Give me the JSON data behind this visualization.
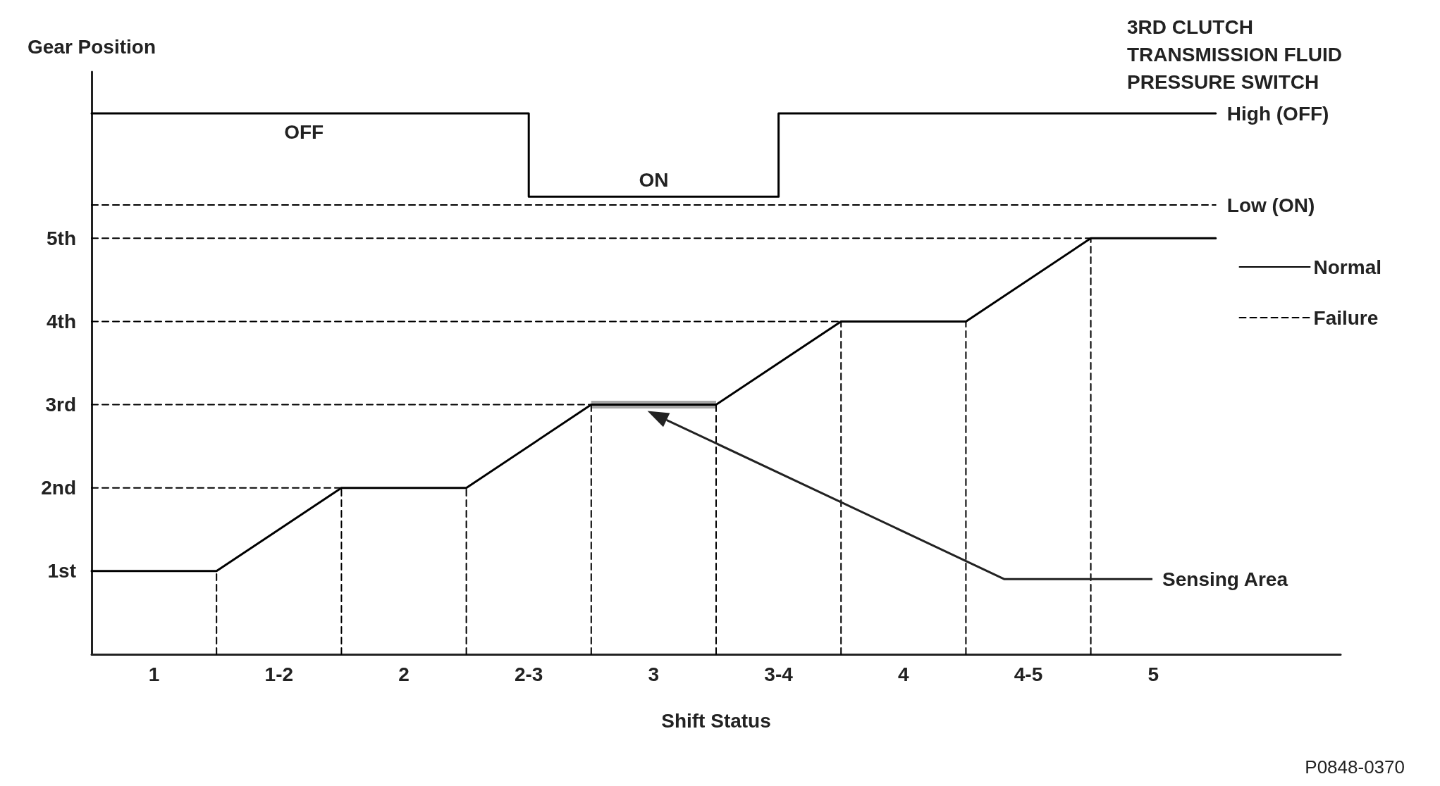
{
  "chart_data": {
    "type": "line",
    "title": "3RD CLUTCH TRANSMISSION FLUID PRESSURE SWITCH",
    "xlabel": "Shift Status",
    "ylabel": "Gear Position",
    "xlim": [
      0.75,
      5.75
    ],
    "xticks": [
      1,
      {
        "value": 1.5,
        "label": "1-2"
      },
      2,
      {
        "value": 2.5,
        "label": "2-3"
      },
      3,
      {
        "value": 3.5,
        "label": "3-4"
      },
      4,
      {
        "value": 4.5,
        "label": "4-5"
      },
      5
    ],
    "ylim": [
      0,
      7
    ],
    "yticks": [
      {
        "value": 1,
        "label": "1st"
      },
      {
        "value": 2,
        "label": "2nd"
      },
      {
        "value": 3,
        "label": "3rd"
      },
      {
        "value": 4,
        "label": "4th"
      },
      {
        "value": 5,
        "label": "5th"
      }
    ],
    "series": [
      {
        "color": "#000000",
        "line_style": "solid",
        "x": [
          0.75,
          1.25,
          1.75,
          2.25,
          2.75,
          3.25,
          3.75,
          4.25,
          4.75,
          5.25
        ],
        "values": [
          1,
          1,
          2,
          2,
          3,
          3,
          4,
          4,
          5,
          5
        ]
      },
      {
        "name": "Normal",
        "color": "#000000",
        "line_style": "solid",
        "x": [
          0.75,
          2.5,
          2.5,
          3.5,
          3.5,
          5.25
        ],
        "values": [
          6.5,
          6.5,
          5.5,
          5.5,
          6.5,
          6.5
        ]
      },
      {
        "name": "Failure",
        "color": "#000000",
        "line_style": "dashed",
        "x": [
          0.75,
          5.25
        ],
        "values": [
          5.4,
          5.4
        ]
      },
      {
        "color": "#a8a8a8",
        "line_style": "solid",
        "x": [
          2.75,
          3.25
        ],
        "values": [
          3,
          3
        ]
      },
      {
        "color": "#000000",
        "line_style": "dashed",
        "x": [
          1.25,
          1.25
        ],
        "values": [
          0,
          1
        ]
      },
      {
        "color": "#000000",
        "line_style": "dashed",
        "x": [
          1.75,
          1.75
        ],
        "values": [
          0,
          2
        ]
      },
      {
        "color": "#000000",
        "line_style": "dashed",
        "x": [
          2.25,
          2.25
        ],
        "values": [
          0,
          2
        ]
      },
      {
        "color": "#000000",
        "line_style": "dashed",
        "x": [
          2.75,
          2.75
        ],
        "values": [
          0,
          3
        ]
      },
      {
        "color": "#000000",
        "line_style": "dashed",
        "x": [
          3.25,
          3.25
        ],
        "values": [
          0,
          3
        ]
      },
      {
        "color": "#000000",
        "line_style": "dashed",
        "x": [
          3.75,
          3.75
        ],
        "values": [
          0,
          4
        ]
      },
      {
        "color": "#000000",
        "line_style": "dashed",
        "x": [
          4.25,
          4.25
        ],
        "values": [
          0,
          4
        ]
      },
      {
        "color": "#000000",
        "line_style": "dashed",
        "x": [
          4.75,
          4.75
        ],
        "values": [
          0,
          5
        ]
      },
      {
        "color": "#000000",
        "line_style": "dashed",
        "x": [
          0.75,
          1.75
        ],
        "values": [
          2,
          2
        ]
      },
      {
        "color": "#000000",
        "line_style": "dashed",
        "x": [
          0.75,
          2.75
        ],
        "values": [
          3,
          3
        ]
      },
      {
        "color": "#000000",
        "line_style": "dashed",
        "x": [
          0.75,
          3.75
        ],
        "values": [
          4,
          4
        ]
      },
      {
        "color": "#000000",
        "line_style": "dashed",
        "x": [
          0.75,
          4.75
        ],
        "values": [
          5,
          5
        ]
      }
    ],
    "annotations": [
      {
        "text": "OFF",
        "x": 1.6,
        "y": 6.5
      },
      {
        "text": "ON",
        "x": 3,
        "y": 5.5
      },
      "Sensing Area",
      {
        "text": "High (OFF)",
        "x": 5.25,
        "y": 6.5
      },
      {
        "text": "Low (ON)",
        "x": 5.25,
        "y": 5.4
      },
      "P0848-0370"
    ],
    "legend": "right",
    "marker": "none"
  }
}
